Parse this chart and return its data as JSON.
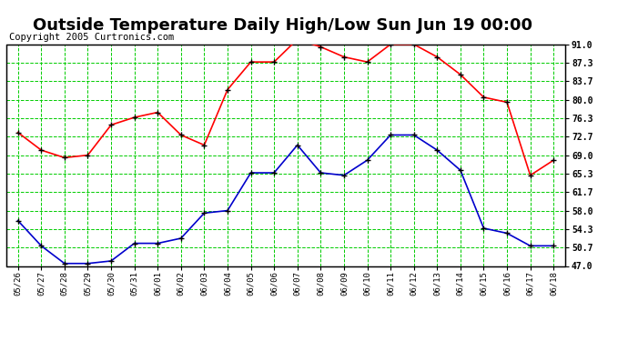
{
  "title": "Outside Temperature Daily High/Low Sun Jun 19 00:00",
  "copyright": "Copyright 2005 Curtronics.com",
  "x_labels": [
    "05/26",
    "05/27",
    "05/28",
    "05/29",
    "05/30",
    "05/31",
    "06/01",
    "06/02",
    "06/03",
    "06/04",
    "06/05",
    "06/06",
    "06/07",
    "06/08",
    "06/09",
    "06/10",
    "06/11",
    "06/12",
    "06/13",
    "06/14",
    "06/15",
    "06/16",
    "06/17",
    "06/18"
  ],
  "high_values": [
    73.5,
    70.0,
    68.5,
    69.0,
    75.0,
    76.5,
    77.5,
    73.0,
    71.0,
    82.0,
    87.5,
    87.5,
    92.0,
    90.5,
    88.5,
    87.5,
    91.0,
    91.0,
    88.5,
    85.0,
    80.5,
    79.5,
    65.0,
    68.0
  ],
  "low_values": [
    56.0,
    51.0,
    47.5,
    47.5,
    48.0,
    51.5,
    51.5,
    52.5,
    57.5,
    58.0,
    65.5,
    65.5,
    71.0,
    65.5,
    65.0,
    68.0,
    73.0,
    73.0,
    70.0,
    66.0,
    54.5,
    53.5,
    51.0,
    51.0
  ],
  "high_color": "#ff0000",
  "low_color": "#0000cc",
  "bg_color": "#ffffff",
  "plot_bg_color": "#ffffff",
  "grid_color": "#00cc00",
  "y_ticks": [
    47.0,
    50.7,
    54.3,
    58.0,
    61.7,
    65.3,
    69.0,
    72.7,
    76.3,
    80.0,
    83.7,
    87.3,
    91.0
  ],
  "ylim": [
    47.0,
    91.0
  ],
  "title_fontsize": 13,
  "copyright_fontsize": 7.5
}
